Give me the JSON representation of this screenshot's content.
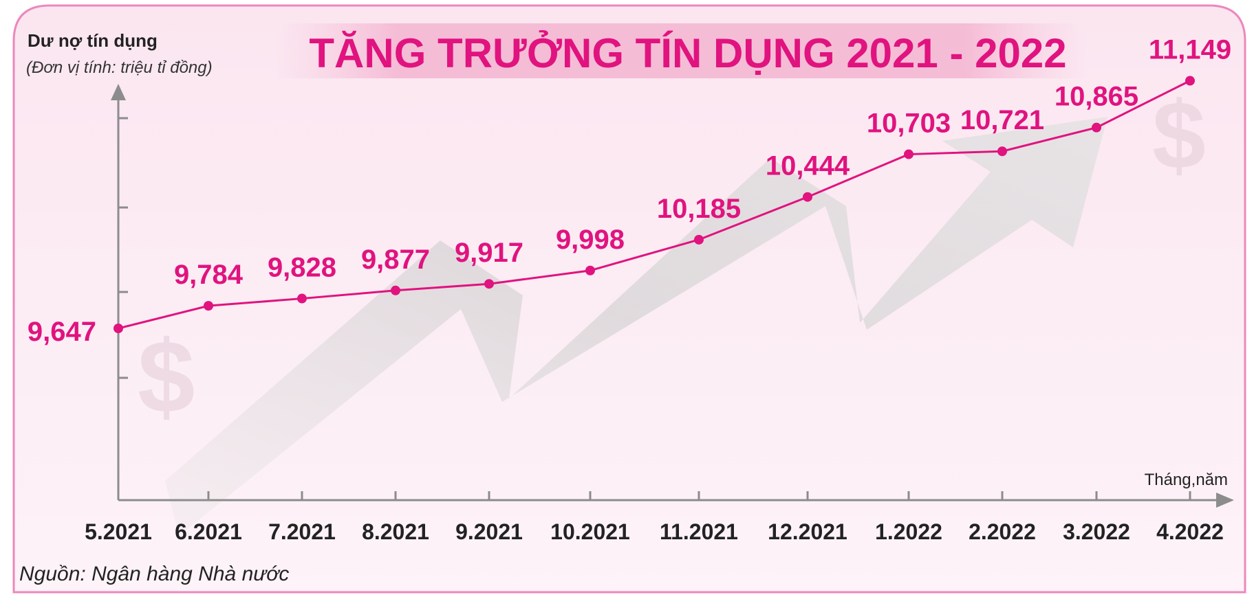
{
  "chart_data": {
    "type": "line",
    "title": "TĂNG TRƯỞNG TÍN DỤNG 2021 - 2022",
    "ylabel": "Dư nợ tín dụng",
    "yunit": "(Đơn vị tính: triệu tỉ đồng)",
    "xlabel": "Tháng,năm",
    "source": "Nguồn: Ngân hàng Nhà nước",
    "categories": [
      "5.2021",
      "6.2021",
      "7.2021",
      "8.2021",
      "9.2021",
      "10.2021",
      "11.2021",
      "12.2021",
      "1.2022",
      "2.2022",
      "3.2022",
      "4.2022"
    ],
    "series": [
      {
        "values": [
          9.647,
          9.784,
          9.828,
          9.877,
          9.917,
          9.998,
          10.185,
          10.444,
          10.703,
          10.721,
          10.865,
          11.149
        ],
        "labels": [
          "9,647",
          "9,784",
          "9,828",
          "9,877",
          "9,917",
          "9,998",
          "10,185",
          "10,444",
          "10,703",
          "10,721",
          "10,865",
          "11,149"
        ]
      }
    ],
    "grid": false,
    "colors": {
      "line": "#e0137f",
      "title": "#e0137f",
      "axis": "#8c8c8c",
      "frame": "#ec88bd",
      "background": "#fbeaf2"
    }
  }
}
